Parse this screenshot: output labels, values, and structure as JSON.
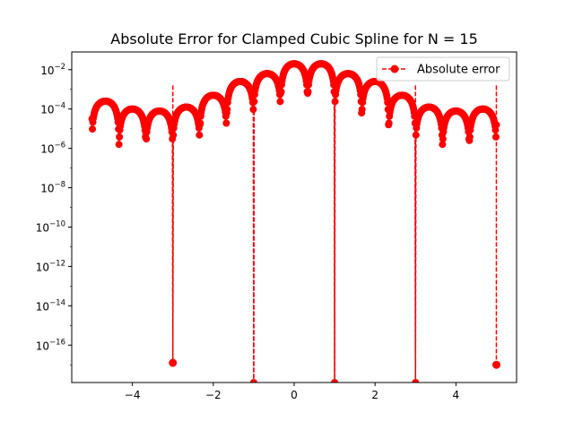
{
  "chart_data": {
    "type": "line",
    "title": "Absolute Error for Clamped Cubic Spline for N = 15",
    "xlabel": "",
    "ylabel": "",
    "xlim": [
      -5.5,
      5.5
    ],
    "ylim_log10": [
      -17.9,
      -1.1
    ],
    "yscale": "log",
    "grid": false,
    "legend": {
      "placement": "top-right",
      "label": "Absolute error"
    },
    "x_ticks": [
      {
        "value": -4,
        "label": "−4"
      },
      {
        "value": -2,
        "label": "−2"
      },
      {
        "value": 0,
        "label": "0"
      },
      {
        "value": 2,
        "label": "2"
      },
      {
        "value": 4,
        "label": "4"
      }
    ],
    "y_ticks": [
      {
        "exp": -2,
        "base": "10",
        "sup": "−2"
      },
      {
        "exp": -4,
        "base": "10",
        "sup": "−4"
      },
      {
        "exp": -6,
        "base": "10",
        "sup": "−6"
      },
      {
        "exp": -8,
        "base": "10",
        "sup": "−8"
      },
      {
        "exp": -10,
        "base": "10",
        "sup": "−10"
      },
      {
        "exp": -12,
        "base": "10",
        "sup": "−12"
      },
      {
        "exp": -14,
        "base": "10",
        "sup": "−14"
      },
      {
        "exp": -16,
        "base": "10",
        "sup": "−16"
      }
    ],
    "series": [
      {
        "name": "Absolute error",
        "color": "#ff0000",
        "linestyle": "dashed",
        "marker": "circle",
        "knots": [
          -5,
          -4.333,
          -3.667,
          -3,
          -2.333,
          -1.667,
          -1,
          -0.333,
          0.333,
          1,
          1.667,
          2.333,
          3,
          3.667,
          4.333,
          5
        ],
        "interval_peak_log10": [
          -3.6,
          -4.0,
          -4.1,
          -3.9,
          -3.3,
          -2.6,
          -2.2,
          -1.7,
          -1.7,
          -2.2,
          -2.6,
          -3.3,
          -3.9,
          -4.1,
          -4.0
        ],
        "knot_error_log10": [
          -5.5,
          -5.8,
          -5.2,
          -16.9,
          -4.8,
          -4.2,
          -17.9,
          -3.2,
          -3.2,
          -17.9,
          -4.2,
          -4.8,
          -17.9,
          -5.8,
          -5.6,
          -17.0
        ],
        "edge_error_log10": [
          -4.5,
          -4.8
        ]
      }
    ]
  }
}
